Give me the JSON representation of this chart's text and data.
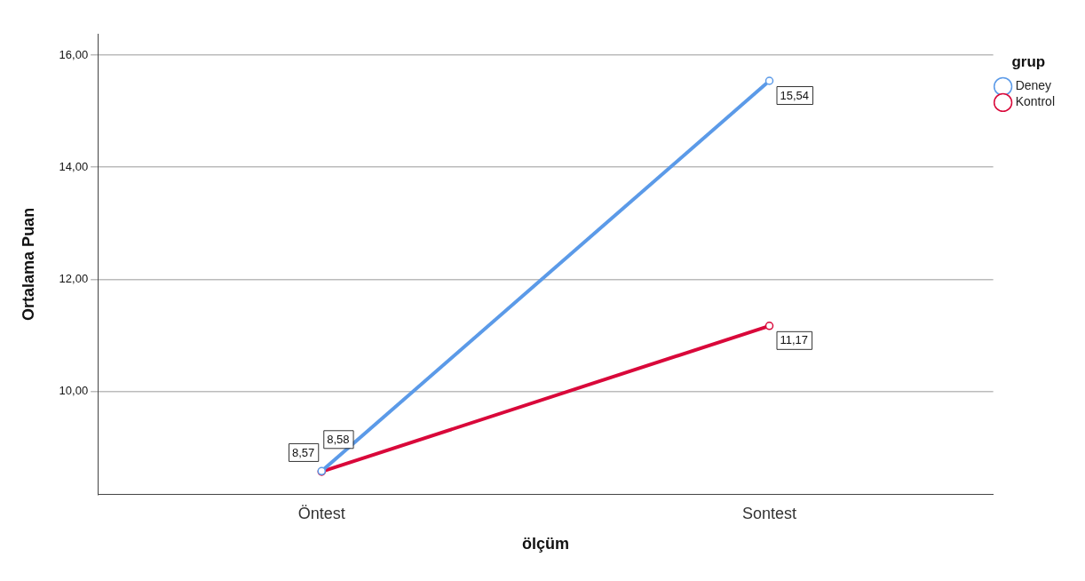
{
  "chart_data": {
    "type": "line",
    "xlabel": "ölçüm",
    "ylabel": "Ortalama Puan",
    "legend_title": "grup",
    "legend": "top right",
    "grid": "y",
    "marker": "circle",
    "line_style": "solid",
    "categories": [
      "Öntest",
      "Sontest"
    ],
    "ylim": [
      8.16,
      16.38
    ],
    "yticks": [
      {
        "value": 10,
        "label": "10,00"
      },
      {
        "value": 12,
        "label": "12,00"
      },
      {
        "value": 14,
        "label": "14,00"
      },
      {
        "value": 16,
        "label": "16,00"
      }
    ],
    "series": [
      {
        "name": "Deney",
        "color": "#5b9ae8",
        "values": [
          8.58,
          15.54
        ],
        "value_labels": [
          "8,58",
          "15,54"
        ]
      },
      {
        "name": "Kontrol",
        "color": "#d9083a",
        "values": [
          8.57,
          11.17
        ],
        "value_labels": [
          "8,57",
          "11,17"
        ]
      }
    ]
  }
}
